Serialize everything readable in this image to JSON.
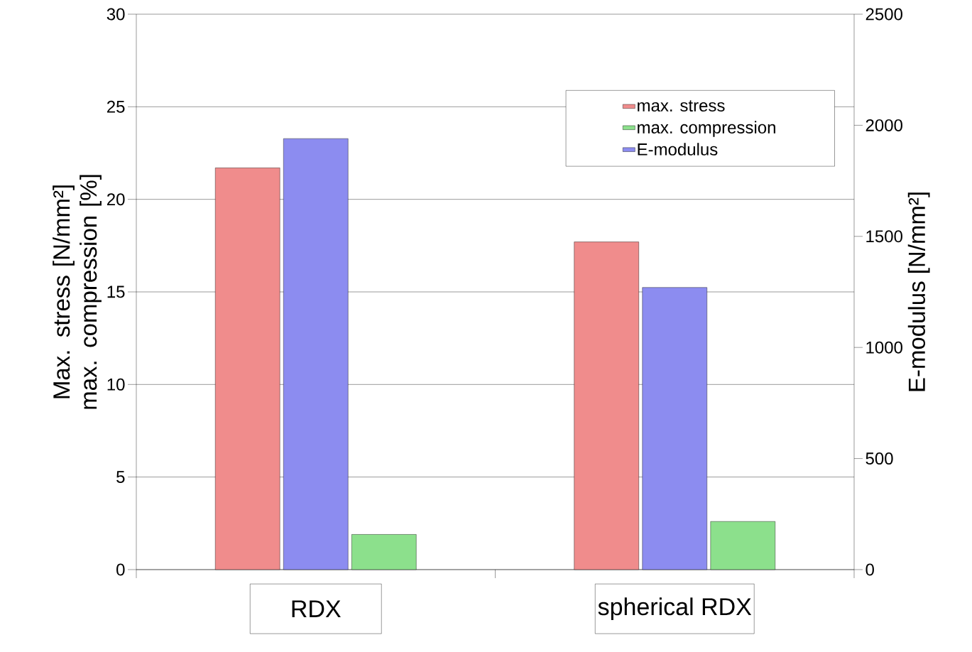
{
  "chart_data": {
    "type": "bar",
    "categories": [
      "RDX",
      "spherical RDX"
    ],
    "ylabel": "Max. stress  [N/mm²] max. compression [%]",
    "y2label": "E-modulus [N/mm²]",
    "ylim": [
      0,
      30
    ],
    "yticks": [
      0,
      5,
      10,
      15,
      20,
      25,
      30
    ],
    "y2lim": [
      0,
      2500
    ],
    "y2ticks": [
      0,
      500,
      1000,
      1500,
      2000,
      2500
    ],
    "grid": "y",
    "legend": "top right",
    "series": [
      {
        "name": "max. stress",
        "color": "#f08c8c",
        "values": [
          21.7,
          17.7
        ]
      },
      {
        "name": "max. compression",
        "color": "#8ce08c",
        "values": [
          1.9,
          2.6
        ]
      },
      {
        "name": "E-modulus",
        "color": "#8c8cf0",
        "values": [
          1940,
          1270
        ],
        "axis": "y2"
      }
    ]
  }
}
